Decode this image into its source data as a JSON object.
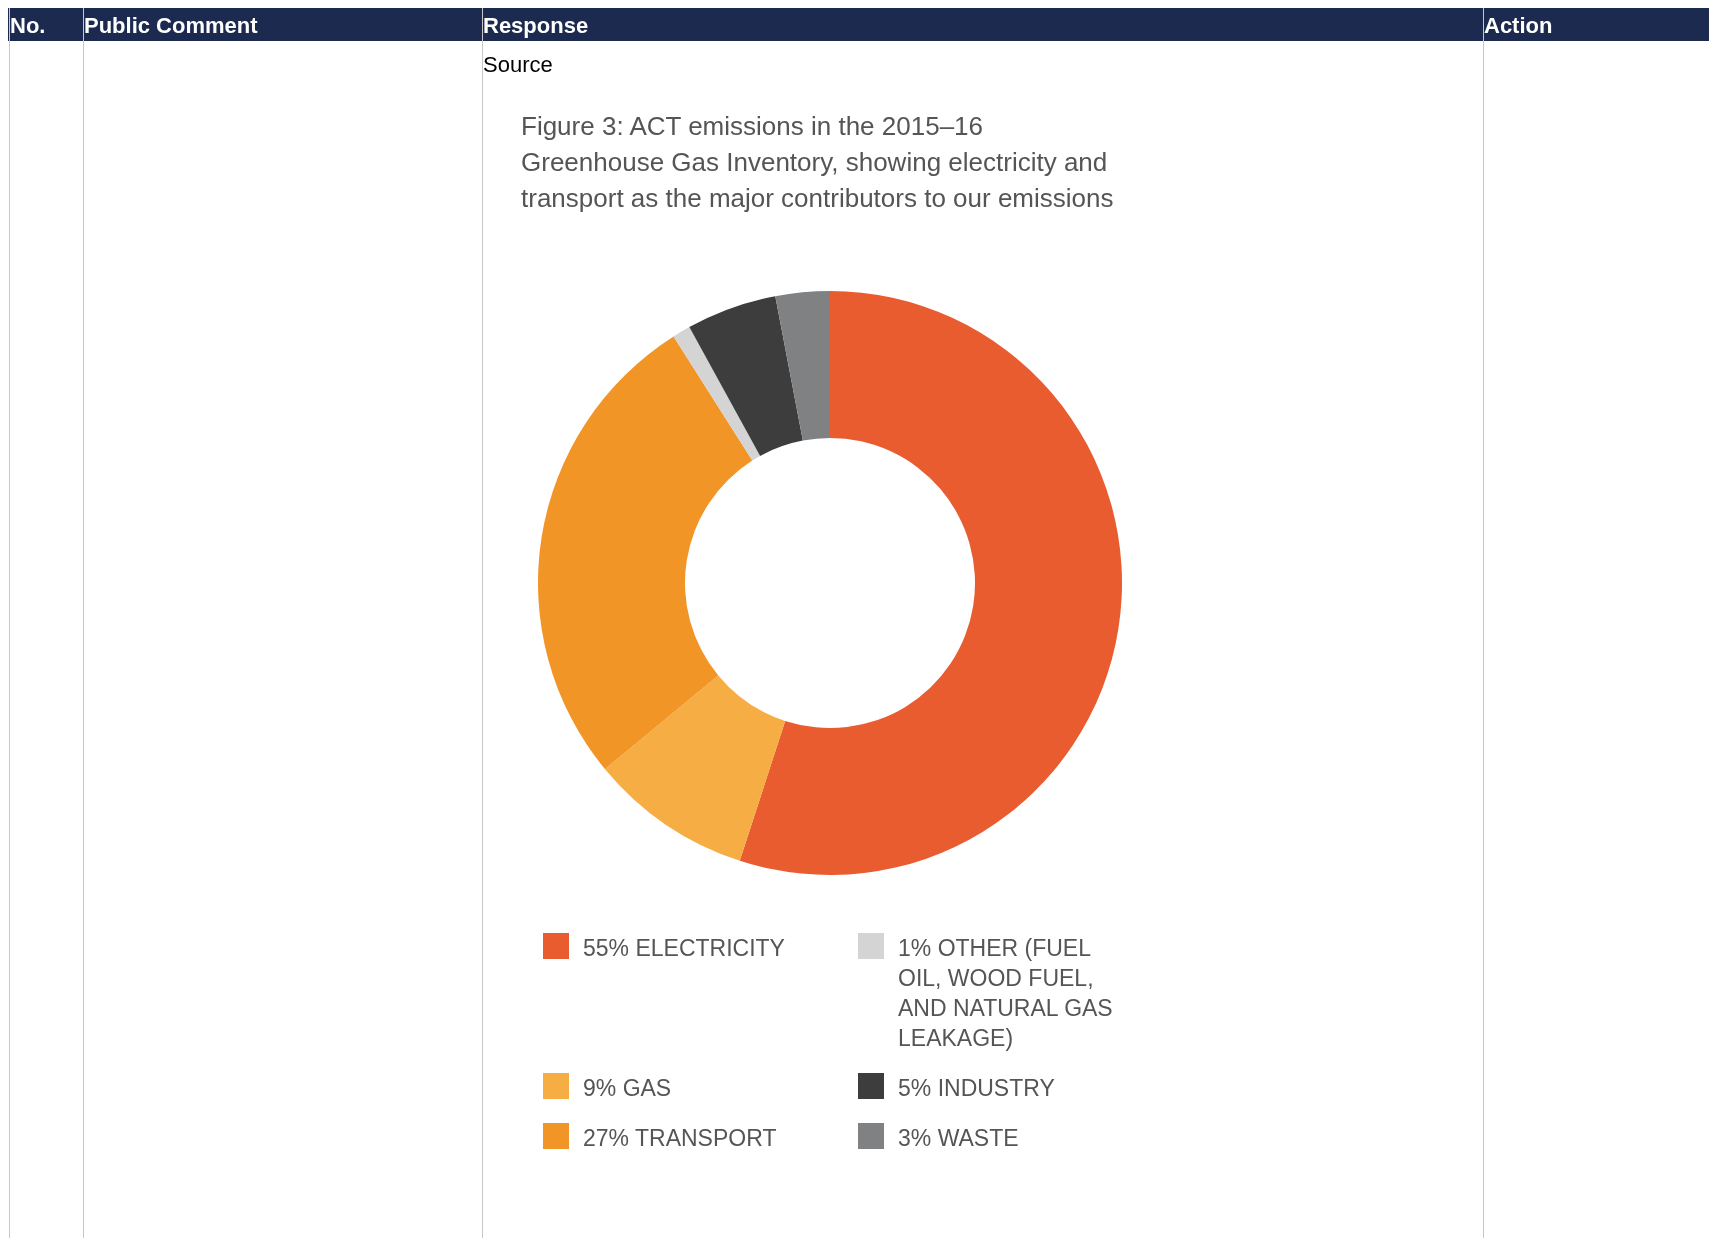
{
  "chart_data": {
    "type": "donut",
    "title": "Figure 3:  ACT emissions in the 2015–16 Greenhouse Gas Inventory, showing electricity and transport as the major contributors to our emissions",
    "categories": [
      "55% ELECTRICITY",
      "9% GAS",
      "27% TRANSPORT",
      "1% OTHER (FUEL OIL, WOOD FUEL, AND NATURAL GAS LEAKAGE)",
      "5% INDUSTRY",
      "3% WASTE"
    ],
    "values": [
      55,
      9,
      27,
      1,
      5,
      3
    ],
    "colors": [
      "#e95c2f",
      "#f6ae44",
      "#f29527",
      "#d4d4d4",
      "#3d3d3d",
      "#7f8183"
    ],
    "legend": "bottom",
    "annotations": [
      "No.",
      "Public Comment",
      "Response",
      "Action",
      "Source"
    ]
  }
}
